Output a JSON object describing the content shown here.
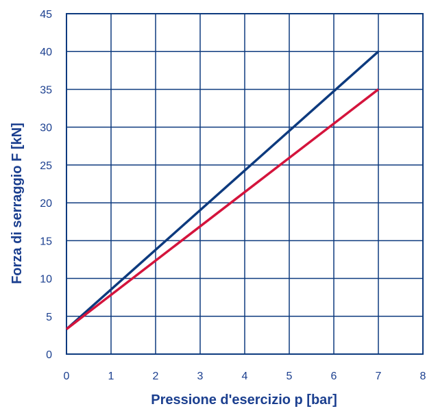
{
  "chart_data": {
    "type": "line",
    "title": "",
    "xlabel": "Pressione d'esercizio p [bar]",
    "ylabel": "Forza di serraggio F [kN]",
    "xlim": [
      0,
      8
    ],
    "ylim": [
      0,
      45
    ],
    "x_ticks": [
      "0",
      "1",
      "2",
      "3",
      "4",
      "5",
      "6",
      "7",
      "8"
    ],
    "y_ticks": [
      "0",
      "5",
      "10",
      "15",
      "20",
      "25",
      "30",
      "35",
      "40",
      "45"
    ],
    "grid": true,
    "legend": "none",
    "series": [
      {
        "color": "#0d3a7e",
        "x": [
          0,
          7
        ],
        "y": [
          3.3,
          40
        ]
      },
      {
        "color": "#d4143c",
        "x": [
          0,
          7
        ],
        "y": [
          3.3,
          35
        ]
      }
    ],
    "colors": {
      "grid": "#0d3a7e",
      "text": "#1b3f8f"
    }
  }
}
